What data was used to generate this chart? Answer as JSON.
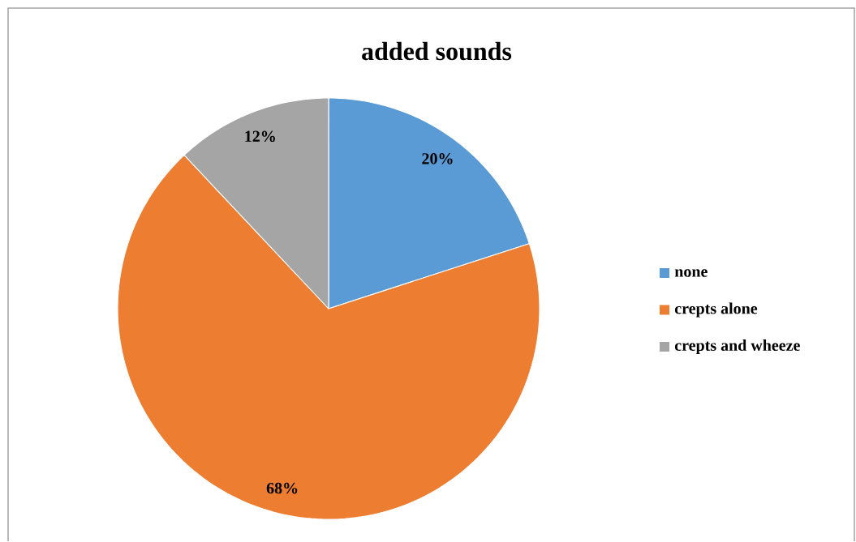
{
  "chart_data": {
    "type": "pie",
    "title": "added sounds",
    "categories": [
      "none",
      "crepts alone",
      "crepts and wheeze"
    ],
    "values": [
      20,
      68,
      12
    ],
    "value_labels": [
      "20%",
      "68%",
      "12%"
    ],
    "colors": [
      "#5b9bd5",
      "#ed7d31",
      "#a5a5a5"
    ],
    "legend": "right"
  }
}
